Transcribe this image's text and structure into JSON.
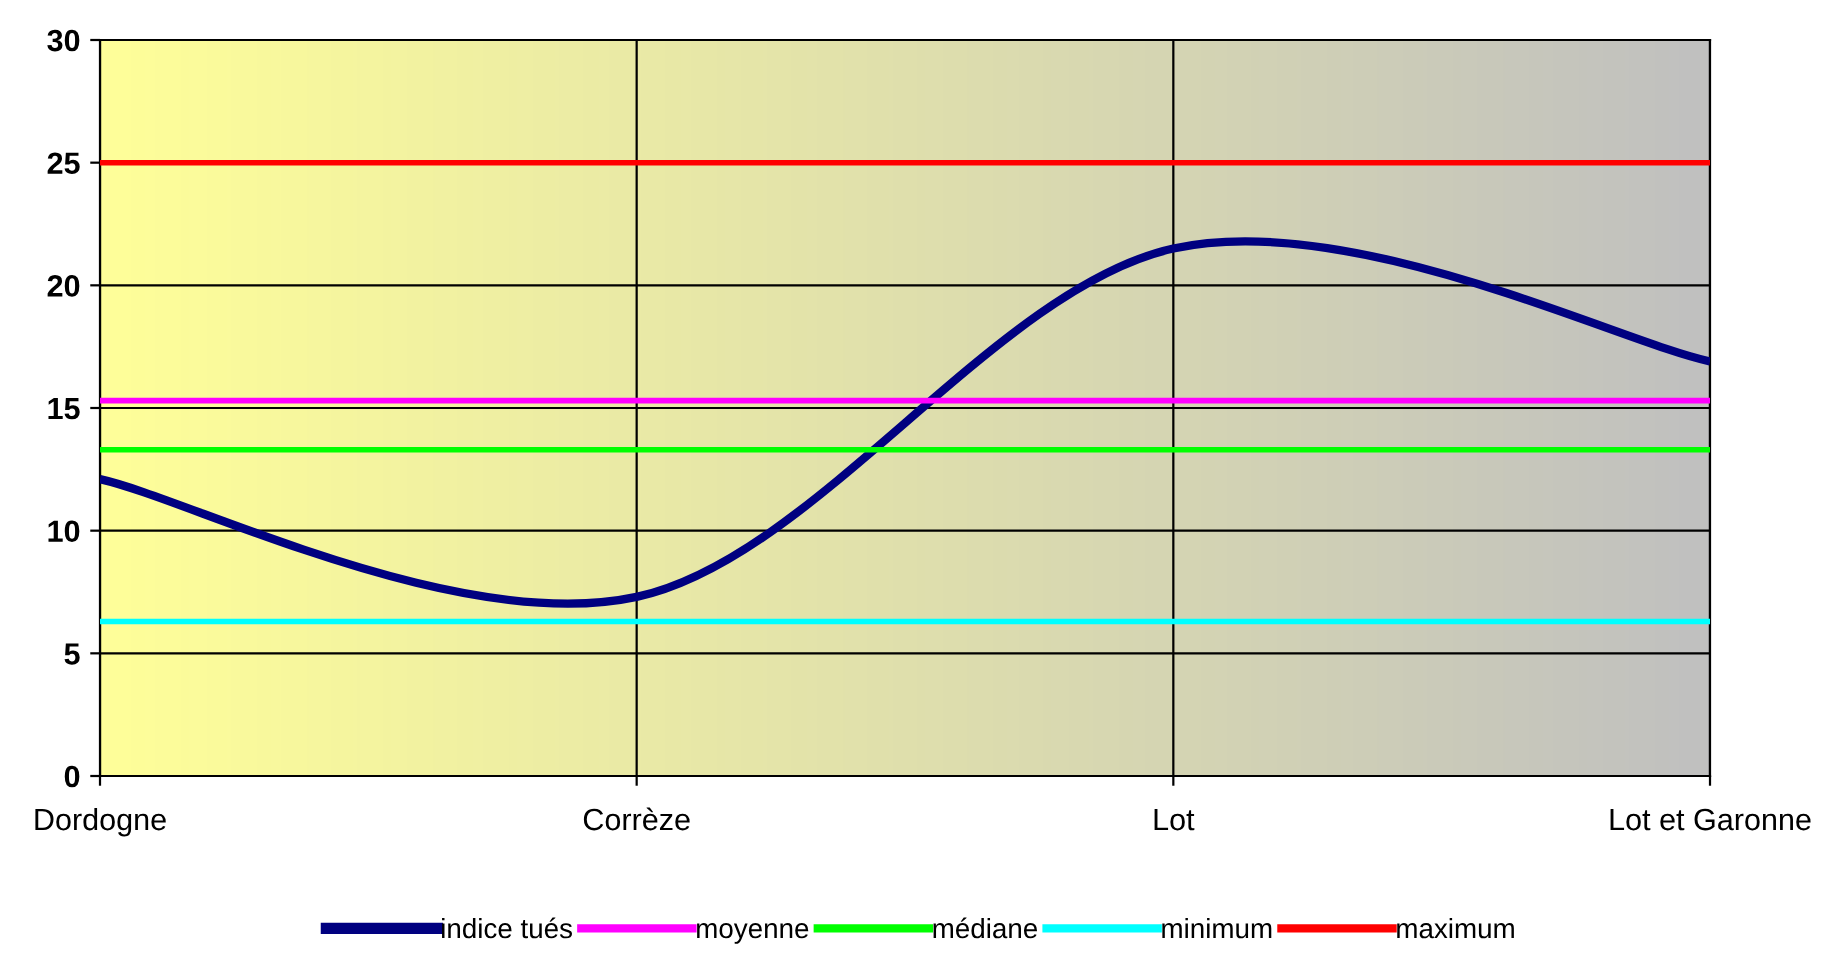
{
  "chart_data": {
    "type": "line",
    "categories": [
      "Dordogne",
      "Corrèze",
      "Lot",
      "Lot et Garonne"
    ],
    "series": [
      {
        "name": "indice tués",
        "color": "#000080",
        "values": [
          12.1,
          7.3,
          21.5,
          16.9
        ]
      },
      {
        "name": "moyenne",
        "color": "#ff00ff",
        "values": [
          15.3,
          15.3,
          15.3,
          15.3
        ]
      },
      {
        "name": "médiane",
        "color": "#00ff00",
        "values": [
          13.3,
          13.3,
          13.3,
          13.3
        ]
      },
      {
        "name": "minimum",
        "color": "#00ffff",
        "values": [
          6.3,
          6.3,
          6.3,
          6.3
        ]
      },
      {
        "name": "maximum",
        "color": "#ff0000",
        "values": [
          25,
          25,
          25,
          25
        ]
      }
    ],
    "ylim": [
      0,
      30
    ],
    "yticks": [
      0,
      5,
      10,
      15,
      20,
      25,
      30
    ],
    "grid": true,
    "legend": "bottom",
    "marker": "none",
    "line_style": "solid"
  }
}
